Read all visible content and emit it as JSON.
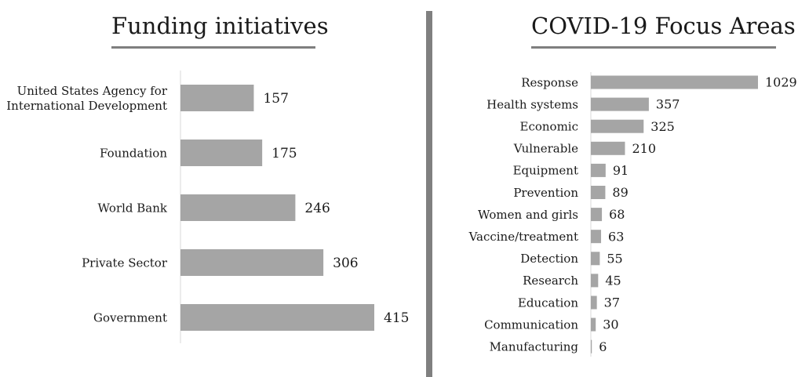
{
  "chart_data": [
    {
      "type": "bar",
      "orientation": "horizontal",
      "title": "Funding initiatives",
      "categories": [
        [
          "United States Agency for",
          "International Development"
        ],
        [
          "Foundation"
        ],
        [
          "World Bank"
        ],
        [
          "Private Sector"
        ],
        [
          "Government"
        ]
      ],
      "values": [
        157,
        175,
        246,
        306,
        415
      ],
      "bar_color": "#a5a5a5",
      "data_labels": true,
      "grid": false
    },
    {
      "type": "bar",
      "orientation": "horizontal",
      "title": "COVID-19 Focus Areas",
      "categories": [
        [
          "Response"
        ],
        [
          "Health systems"
        ],
        [
          "Economic"
        ],
        [
          "Vulnerable"
        ],
        [
          "Equipment"
        ],
        [
          "Prevention"
        ],
        [
          "Women and girls"
        ],
        [
          "Vaccine/treatment"
        ],
        [
          "Detection"
        ],
        [
          "Research"
        ],
        [
          "Education"
        ],
        [
          "Communication"
        ],
        [
          "Manufacturing"
        ]
      ],
      "values": [
        1029,
        357,
        325,
        210,
        91,
        89,
        68,
        63,
        55,
        45,
        37,
        30,
        6
      ],
      "bar_color": "#a5a5a5",
      "data_labels": true,
      "grid": false
    }
  ],
  "colors": {
    "divider": "#808080",
    "title_rule": "#7f7f7f",
    "axis_line": "#d9d9d9"
  }
}
